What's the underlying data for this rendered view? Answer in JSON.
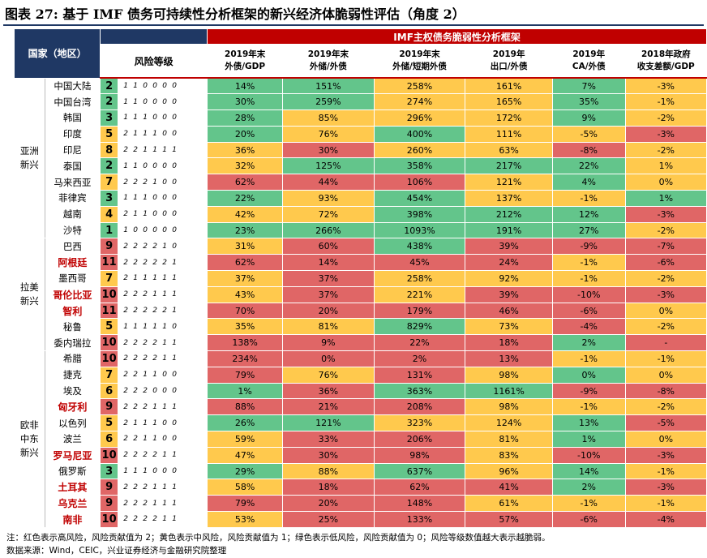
{
  "title": "图表 27: 基于 IMF 债务可持续性分析框架的新兴经济体脆弱性评估（角度 2）",
  "header": {
    "country_label": "国家（地区）",
    "framework_label": "IMF主权债务脆弱性分析框架",
    "risk_label": "风险等级",
    "metrics": [
      {
        "line1": "2019年末",
        "line2": "外债/GDP"
      },
      {
        "line1": "2019年末",
        "line2": "外储/外债"
      },
      {
        "line1": "2019年末",
        "line2": "外储/短期外债"
      },
      {
        "line1": "2019年",
        "line2": "出口/外债"
      },
      {
        "line1": "2019年",
        "line2": "CA/外债"
      },
      {
        "line1": "2018年政府",
        "line2": "收支差额/GDP"
      }
    ]
  },
  "colors": {
    "red": "#e06666",
    "yellow": "#ffc94d",
    "green": "#63c58b",
    "header_blue": "#1f3864",
    "header_red": "#c00000"
  },
  "groups": [
    {
      "region": "亚洲新兴",
      "rows": [
        {
          "name": "中国大陆",
          "red": false,
          "score": "2",
          "digits": [
            "1",
            "1",
            "0",
            "0",
            "0",
            "0"
          ],
          "values": [
            "14%",
            "151%",
            "258%",
            "161%",
            "7%",
            "-3%"
          ],
          "colors": [
            "g",
            "g",
            "y",
            "y",
            "g",
            "y"
          ]
        },
        {
          "name": "中国台湾",
          "red": false,
          "score": "2",
          "digits": [
            "1",
            "1",
            "0",
            "0",
            "0",
            "0"
          ],
          "values": [
            "30%",
            "259%",
            "274%",
            "165%",
            "35%",
            "-1%"
          ],
          "colors": [
            "g",
            "g",
            "y",
            "y",
            "g",
            "y"
          ]
        },
        {
          "name": "韩国",
          "red": false,
          "score": "3",
          "digits": [
            "1",
            "1",
            "1",
            "0",
            "0",
            "0"
          ],
          "values": [
            "28%",
            "85%",
            "296%",
            "172%",
            "9%",
            "-2%"
          ],
          "colors": [
            "g",
            "y",
            "y",
            "y",
            "g",
            "y"
          ]
        },
        {
          "name": "印度",
          "red": false,
          "score": "5",
          "digits": [
            "2",
            "1",
            "1",
            "1",
            "0",
            "0"
          ],
          "values": [
            "20%",
            "76%",
            "400%",
            "111%",
            "-5%",
            "-3%"
          ],
          "colors": [
            "g",
            "y",
            "g",
            "y",
            "y",
            "r"
          ]
        },
        {
          "name": "印尼",
          "red": false,
          "score": "8",
          "digits": [
            "2",
            "2",
            "1",
            "1",
            "1",
            "1"
          ],
          "values": [
            "36%",
            "30%",
            "260%",
            "63%",
            "-8%",
            "-2%"
          ],
          "colors": [
            "y",
            "r",
            "y",
            "y",
            "r",
            "y"
          ]
        },
        {
          "name": "泰国",
          "red": false,
          "score": "2",
          "digits": [
            "1",
            "1",
            "0",
            "0",
            "0",
            "0"
          ],
          "values": [
            "32%",
            "125%",
            "358%",
            "217%",
            "22%",
            "1%"
          ],
          "colors": [
            "y",
            "g",
            "g",
            "g",
            "g",
            "y"
          ]
        },
        {
          "name": "马来西亚",
          "red": false,
          "score": "7",
          "digits": [
            "2",
            "2",
            "2",
            "1",
            "0",
            "0"
          ],
          "values": [
            "62%",
            "44%",
            "106%",
            "121%",
            "4%",
            "0%"
          ],
          "colors": [
            "r",
            "r",
            "r",
            "y",
            "g",
            "y"
          ]
        },
        {
          "name": "菲律宾",
          "red": false,
          "score": "3",
          "digits": [
            "1",
            "1",
            "1",
            "0",
            "0",
            "0"
          ],
          "values": [
            "22%",
            "93%",
            "454%",
            "137%",
            "-1%",
            "1%"
          ],
          "colors": [
            "g",
            "y",
            "g",
            "y",
            "y",
            "g"
          ]
        },
        {
          "name": "越南",
          "red": false,
          "score": "4",
          "digits": [
            "2",
            "1",
            "1",
            "0",
            "0",
            "0"
          ],
          "values": [
            "42%",
            "72%",
            "398%",
            "212%",
            "12%",
            "-3%"
          ],
          "colors": [
            "y",
            "y",
            "g",
            "g",
            "g",
            "r"
          ]
        },
        {
          "name": "沙特",
          "red": false,
          "score": "1",
          "digits": [
            "1",
            "0",
            "0",
            "0",
            "0",
            "0"
          ],
          "values": [
            "23%",
            "266%",
            "1093%",
            "191%",
            "27%",
            "-2%"
          ],
          "colors": [
            "g",
            "g",
            "g",
            "g",
            "g",
            "y"
          ]
        }
      ]
    },
    {
      "region": "拉美新兴",
      "rows": [
        {
          "name": "巴西",
          "red": false,
          "score": "9",
          "digits": [
            "2",
            "2",
            "2",
            "2",
            "1",
            "0"
          ],
          "values": [
            "31%",
            "60%",
            "438%",
            "39%",
            "-9%",
            "-7%"
          ],
          "colors": [
            "y",
            "r",
            "g",
            "r",
            "r",
            "r"
          ]
        },
        {
          "name": "阿根廷",
          "red": true,
          "score": "11",
          "digits": [
            "2",
            "2",
            "2",
            "2",
            "2",
            "1"
          ],
          "values": [
            "62%",
            "14%",
            "45%",
            "24%",
            "-1%",
            "-6%"
          ],
          "colors": [
            "r",
            "r",
            "r",
            "r",
            "y",
            "r"
          ]
        },
        {
          "name": "墨西哥",
          "red": false,
          "score": "7",
          "digits": [
            "2",
            "1",
            "1",
            "1",
            "1",
            "1"
          ],
          "values": [
            "37%",
            "37%",
            "258%",
            "92%",
            "-1%",
            "-2%"
          ],
          "colors": [
            "y",
            "r",
            "y",
            "y",
            "y",
            "y"
          ]
        },
        {
          "name": "哥伦比亚",
          "red": true,
          "score": "10",
          "digits": [
            "2",
            "2",
            "2",
            "1",
            "1",
            "1"
          ],
          "values": [
            "43%",
            "37%",
            "221%",
            "39%",
            "-10%",
            "-3%"
          ],
          "colors": [
            "y",
            "r",
            "y",
            "r",
            "r",
            "r"
          ]
        },
        {
          "name": "智利",
          "red": true,
          "score": "11",
          "digits": [
            "2",
            "2",
            "2",
            "2",
            "2",
            "1"
          ],
          "values": [
            "70%",
            "20%",
            "179%",
            "46%",
            "-6%",
            "0%"
          ],
          "colors": [
            "r",
            "r",
            "r",
            "r",
            "r",
            "y"
          ]
        },
        {
          "name": "秘鲁",
          "red": false,
          "score": "5",
          "digits": [
            "1",
            "1",
            "1",
            "1",
            "1",
            "0"
          ],
          "values": [
            "35%",
            "81%",
            "829%",
            "73%",
            "-4%",
            "-2%"
          ],
          "colors": [
            "y",
            "y",
            "g",
            "y",
            "r",
            "y"
          ]
        },
        {
          "name": "委内瑞拉",
          "red": false,
          "score": "10",
          "digits": [
            "2",
            "2",
            "2",
            "2",
            "1",
            "1"
          ],
          "values": [
            "138%",
            "9%",
            "22%",
            "18%",
            "2%",
            "-"
          ],
          "colors": [
            "r",
            "r",
            "r",
            "r",
            "g",
            "r"
          ]
        }
      ]
    },
    {
      "region": "欧非中东新兴",
      "rows": [
        {
          "name": "希腊",
          "red": false,
          "score": "10",
          "digits": [
            "2",
            "2",
            "2",
            "2",
            "1",
            "1"
          ],
          "values": [
            "234%",
            "0%",
            "2%",
            "13%",
            "-1%",
            "-1%"
          ],
          "colors": [
            "r",
            "r",
            "r",
            "r",
            "y",
            "y"
          ]
        },
        {
          "name": "捷克",
          "red": false,
          "score": "7",
          "digits": [
            "2",
            "2",
            "1",
            "1",
            "0",
            "0"
          ],
          "values": [
            "79%",
            "76%",
            "131%",
            "98%",
            "0%",
            "0%"
          ],
          "colors": [
            "r",
            "y",
            "r",
            "y",
            "g",
            "y"
          ]
        },
        {
          "name": "埃及",
          "red": false,
          "score": "6",
          "digits": [
            "2",
            "2",
            "2",
            "0",
            "0",
            "0"
          ],
          "values": [
            "1%",
            "36%",
            "363%",
            "1161%",
            "-9%",
            "-8%"
          ],
          "colors": [
            "g",
            "r",
            "g",
            "g",
            "r",
            "r"
          ]
        },
        {
          "name": "匈牙利",
          "red": true,
          "score": "9",
          "digits": [
            "2",
            "2",
            "2",
            "1",
            "1",
            "1"
          ],
          "values": [
            "88%",
            "21%",
            "208%",
            "98%",
            "-1%",
            "-2%"
          ],
          "colors": [
            "r",
            "r",
            "r",
            "y",
            "y",
            "y"
          ]
        },
        {
          "name": "以色列",
          "red": false,
          "score": "5",
          "digits": [
            "2",
            "1",
            "1",
            "1",
            "0",
            "0"
          ],
          "values": [
            "26%",
            "121%",
            "323%",
            "124%",
            "13%",
            "-5%"
          ],
          "colors": [
            "g",
            "g",
            "y",
            "y",
            "g",
            "r"
          ]
        },
        {
          "name": "波兰",
          "red": false,
          "score": "6",
          "digits": [
            "2",
            "2",
            "1",
            "1",
            "0",
            "0"
          ],
          "values": [
            "59%",
            "33%",
            "206%",
            "81%",
            "1%",
            "0%"
          ],
          "colors": [
            "y",
            "r",
            "r",
            "y",
            "g",
            "y"
          ]
        },
        {
          "name": "罗马尼亚",
          "red": true,
          "score": "10",
          "digits": [
            "2",
            "2",
            "2",
            "2",
            "1",
            "1"
          ],
          "values": [
            "47%",
            "30%",
            "98%",
            "83%",
            "-10%",
            "-3%"
          ],
          "colors": [
            "y",
            "r",
            "r",
            "y",
            "r",
            "r"
          ]
        },
        {
          "name": "俄罗斯",
          "red": false,
          "score": "3",
          "digits": [
            "1",
            "1",
            "1",
            "0",
            "0",
            "0"
          ],
          "values": [
            "29%",
            "88%",
            "637%",
            "96%",
            "14%",
            "-1%"
          ],
          "colors": [
            "g",
            "y",
            "g",
            "y",
            "g",
            "y"
          ]
        },
        {
          "name": "土耳其",
          "red": true,
          "score": "9",
          "digits": [
            "2",
            "2",
            "2",
            "1",
            "1",
            "1"
          ],
          "values": [
            "58%",
            "18%",
            "62%",
            "41%",
            "2%",
            "-3%"
          ],
          "colors": [
            "y",
            "r",
            "r",
            "r",
            "g",
            "r"
          ]
        },
        {
          "name": "乌克兰",
          "red": true,
          "score": "9",
          "digits": [
            "2",
            "2",
            "2",
            "1",
            "1",
            "1"
          ],
          "values": [
            "79%",
            "20%",
            "148%",
            "61%",
            "-1%",
            "-1%"
          ],
          "colors": [
            "r",
            "r",
            "r",
            "y",
            "y",
            "y"
          ]
        },
        {
          "name": "南非",
          "red": true,
          "score": "10",
          "digits": [
            "2",
            "2",
            "2",
            "2",
            "1",
            "1"
          ],
          "values": [
            "53%",
            "25%",
            "133%",
            "57%",
            "-6%",
            "-4%"
          ],
          "colors": [
            "y",
            "r",
            "r",
            "r",
            "r",
            "r"
          ]
        }
      ]
    }
  ],
  "notes": {
    "line1": "注：红色表示高风险，风险贡献值为 2；黄色表示中风险，风险贡献值为 1；绿色表示低风险，风险贡献值为 0；风险等级数值越大表示越脆弱。",
    "line2": "数据来源：Wind，CEIC，兴业证券经济与金融研究院整理"
  }
}
